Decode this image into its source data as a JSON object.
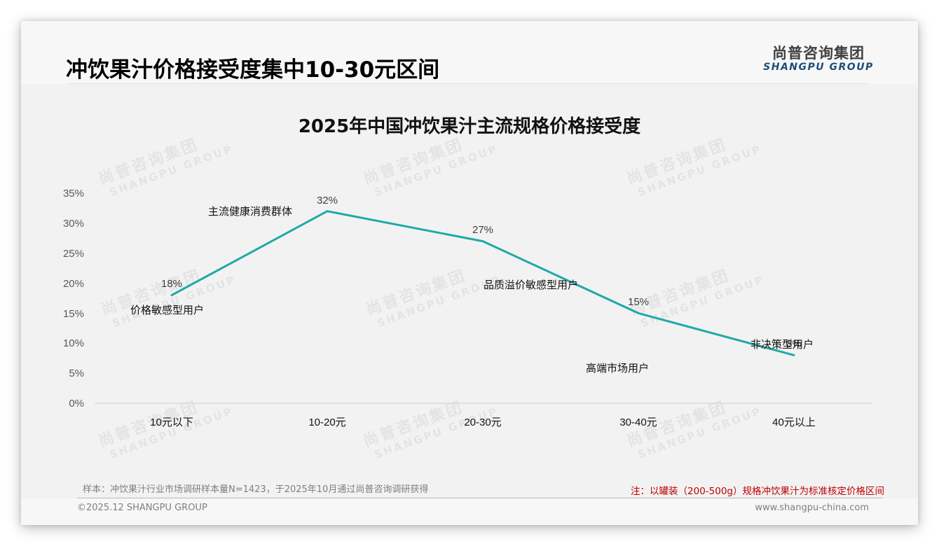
{
  "header": {
    "title": "冲饮果汁价格接受度集中10-30元区间",
    "logo_cn": "尚普咨询集团",
    "logo_en": "SHANGPU GROUP"
  },
  "watermark": {
    "cn": "尚普咨询集团",
    "en": "SHANGPU GROUP"
  },
  "chart_data": {
    "type": "line",
    "title": "2025年中国冲饮果汁主流规格价格接受度",
    "xlabel": "",
    "ylabel": "",
    "categories": [
      "10元以下",
      "10-20元",
      "20-30元",
      "30-40元",
      "40元以上"
    ],
    "series": [
      {
        "name": "价格接受度",
        "values": [
          18,
          32,
          27,
          15,
          8
        ],
        "color": "#1fa9a6"
      }
    ],
    "data_labels": [
      "18%",
      "32%",
      "27%",
      "15%",
      "8%"
    ],
    "annotations": [
      "价格敏感型用户",
      "主流健康消费群体",
      "品质溢价敏感型用户",
      "高端市场用户",
      "非决策型用户"
    ],
    "y_ticks": [
      "0%",
      "5%",
      "10%",
      "15%",
      "20%",
      "25%",
      "30%",
      "35%"
    ],
    "ylim": [
      0,
      35
    ],
    "grid": false,
    "legend": "none"
  },
  "footer": {
    "sample_note": "样本：冲饮果汁行业市场调研样本量N=1423，于2025年10月通过尚普咨询调研获得",
    "red_note": "注：以罐装（200-500g）规格冲饮果汁为标准核定价格区间",
    "copyright": "©2025.12 SHANGPU GROUP",
    "website": "www.shangpu-china.com"
  },
  "colors": {
    "line": "#1fa9a6",
    "note_red": "#c00000",
    "logo_blue": "#1f4e79"
  }
}
